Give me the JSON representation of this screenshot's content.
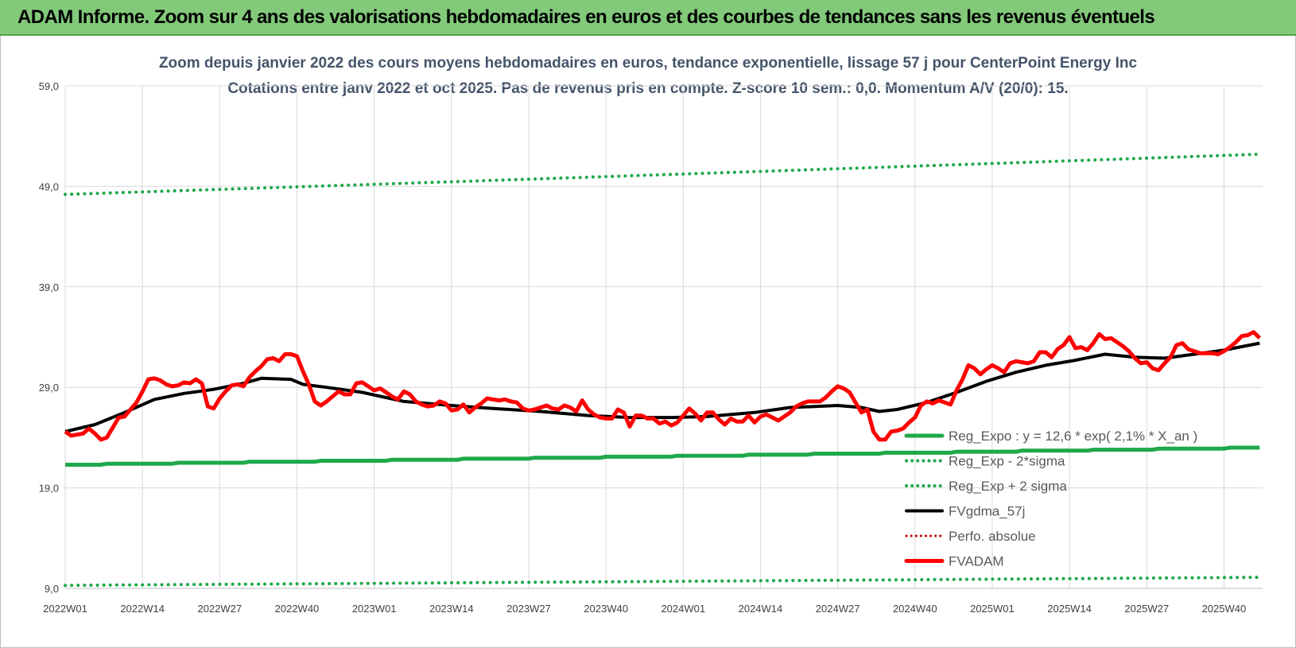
{
  "banner": {
    "title": "ADAM Informe. Zoom sur 4 ans des valorisations hebdomadaires en euros et des courbes de tendances sans les revenus éventuels"
  },
  "colors": {
    "banner": "#82c97a",
    "reg_expo": "#1fa84a",
    "fvgdma": "#000000",
    "fvadam": "#ff0000",
    "perfo": "#c00000",
    "grid": "#d9d9d9"
  },
  "chart_data": {
    "type": "line",
    "title_line1": "Zoom depuis janvier 2022 des cours moyens hebdomadaires en euros, tendance exponentielle, lissage 57 j pour CenterPoint Energy Inc",
    "title_line2": "Cotations entre janv 2022 et oct 2025. Pas de revenus pris en compte. Z-score 10 sem.: 0,0. Momentum A/V (20/0): 15.",
    "ylim": [
      9,
      59
    ],
    "y_ticks": [
      "9,0",
      "19,0",
      "29,0",
      "39,0",
      "49,0",
      "59,0"
    ],
    "y_tick_values": [
      9,
      19,
      29,
      39,
      49,
      59
    ],
    "x_ticks": [
      "2022W01",
      "2022W14",
      "2022W27",
      "2022W40",
      "2023W01",
      "2023W14",
      "2023W27",
      "2023W40",
      "2024W01",
      "2024W14",
      "2024W27",
      "2024W40",
      "2025W01",
      "2025W14",
      "2025W27",
      "2025W40"
    ],
    "x_tick_index": [
      0,
      13,
      26,
      39,
      52,
      65,
      78,
      91,
      104,
      117,
      130,
      143,
      156,
      169,
      182,
      195
    ],
    "n_weeks": 202,
    "grid": true,
    "legend_position": "bottom-right",
    "legend": [
      {
        "key": "reg_expo",
        "label": "Reg_Expo : y = 12,6 * exp( 2,1% * X_an )",
        "style": "solid-green-thick"
      },
      {
        "key": "reg_minus",
        "label": "Reg_Exp - 2*sigma",
        "style": "dotted-green"
      },
      {
        "key": "reg_plus",
        "label": "Reg_Exp + 2 sigma",
        "style": "dotted-green"
      },
      {
        "key": "fvgdma",
        "label": "FVgdma_57j",
        "style": "solid-black"
      },
      {
        "key": "perfo",
        "label": "Perfo. absolue",
        "style": "dotted-red"
      },
      {
        "key": "fvadam",
        "label": "FVADAM",
        "style": "solid-red-thick"
      }
    ],
    "series": [
      {
        "name": "Reg_Expo : y = 12,6 * exp( 2,1% * X_an )",
        "type": "line",
        "start": 21.3,
        "end": 23.0
      },
      {
        "name": "Reg_Exp - 2*sigma",
        "type": "dotted",
        "start": 9.3,
        "end": 10.1
      },
      {
        "name": "Reg_Exp + 2 sigma",
        "type": "dotted",
        "start": 48.2,
        "end": 52.2
      },
      {
        "name": "FVgdma_57j",
        "points": [
          [
            0,
            24.6
          ],
          [
            5,
            25.3
          ],
          [
            10,
            26.5
          ],
          [
            15,
            27.8
          ],
          [
            20,
            28.4
          ],
          [
            25,
            28.8
          ],
          [
            30,
            29.4
          ],
          [
            33,
            29.9
          ],
          [
            38,
            29.8
          ],
          [
            40,
            29.3
          ],
          [
            44,
            29.0
          ],
          [
            50,
            28.5
          ],
          [
            57,
            27.6
          ],
          [
            65,
            27.2
          ],
          [
            72,
            26.9
          ],
          [
            80,
            26.6
          ],
          [
            88,
            26.2
          ],
          [
            95,
            26.0
          ],
          [
            102,
            26.0
          ],
          [
            108,
            26.1
          ],
          [
            116,
            26.5
          ],
          [
            122,
            27.0
          ],
          [
            130,
            27.2
          ],
          [
            134,
            27.0
          ],
          [
            137,
            26.6
          ],
          [
            140,
            26.8
          ],
          [
            145,
            27.5
          ],
          [
            150,
            28.5
          ],
          [
            155,
            29.6
          ],
          [
            160,
            30.5
          ],
          [
            165,
            31.2
          ],
          [
            170,
            31.7
          ],
          [
            175,
            32.3
          ],
          [
            180,
            32.0
          ],
          [
            185,
            31.9
          ],
          [
            190,
            32.3
          ],
          [
            195,
            32.7
          ],
          [
            201,
            33.4
          ]
        ]
      },
      {
        "name": "FVADAM",
        "points": [
          [
            0,
            24.6
          ],
          [
            1,
            24.2
          ],
          [
            2,
            24.3
          ],
          [
            3,
            24.4
          ],
          [
            4,
            24.9
          ],
          [
            5,
            24.4
          ],
          [
            6,
            23.8
          ],
          [
            7,
            24.0
          ],
          [
            8,
            25.0
          ],
          [
            9,
            26.0
          ],
          [
            10,
            26.1
          ],
          [
            11,
            26.8
          ],
          [
            12,
            27.5
          ],
          [
            13,
            28.6
          ],
          [
            14,
            29.8
          ],
          [
            15,
            29.9
          ],
          [
            16,
            29.7
          ],
          [
            17,
            29.3
          ],
          [
            18,
            29.1
          ],
          [
            19,
            29.2
          ],
          [
            20,
            29.5
          ],
          [
            21,
            29.4
          ],
          [
            22,
            29.8
          ],
          [
            23,
            29.4
          ],
          [
            24,
            27.1
          ],
          [
            25,
            26.9
          ],
          [
            26,
            27.9
          ],
          [
            27,
            28.6
          ],
          [
            28,
            29.2
          ],
          [
            29,
            29.3
          ],
          [
            30,
            29.1
          ],
          [
            31,
            30.0
          ],
          [
            32,
            30.6
          ],
          [
            33,
            31.1
          ],
          [
            34,
            31.8
          ],
          [
            35,
            31.9
          ],
          [
            36,
            31.6
          ],
          [
            37,
            32.3
          ],
          [
            38,
            32.3
          ],
          [
            39,
            32.1
          ],
          [
            40,
            30.6
          ],
          [
            41,
            29.3
          ],
          [
            42,
            27.6
          ],
          [
            43,
            27.2
          ],
          [
            44,
            27.6
          ],
          [
            45,
            28.1
          ],
          [
            46,
            28.6
          ],
          [
            47,
            28.3
          ],
          [
            48,
            28.3
          ],
          [
            49,
            29.4
          ],
          [
            50,
            29.5
          ],
          [
            51,
            29.1
          ],
          [
            52,
            28.7
          ],
          [
            53,
            28.9
          ],
          [
            54,
            28.5
          ],
          [
            55,
            28.1
          ],
          [
            56,
            27.8
          ],
          [
            57,
            28.6
          ],
          [
            58,
            28.3
          ],
          [
            59,
            27.6
          ],
          [
            60,
            27.3
          ],
          [
            61,
            27.1
          ],
          [
            62,
            27.2
          ],
          [
            63,
            27.6
          ],
          [
            64,
            27.4
          ],
          [
            65,
            26.7
          ],
          [
            66,
            26.8
          ],
          [
            67,
            27.3
          ],
          [
            68,
            26.5
          ],
          [
            69,
            27.0
          ],
          [
            70,
            27.4
          ],
          [
            71,
            27.9
          ],
          [
            72,
            27.8
          ],
          [
            73,
            27.7
          ],
          [
            74,
            27.8
          ],
          [
            75,
            27.6
          ],
          [
            76,
            27.5
          ],
          [
            77,
            26.9
          ],
          [
            78,
            26.7
          ],
          [
            79,
            26.8
          ],
          [
            80,
            27.0
          ],
          [
            81,
            27.2
          ],
          [
            82,
            26.9
          ],
          [
            83,
            26.8
          ],
          [
            84,
            27.2
          ],
          [
            85,
            27.0
          ],
          [
            86,
            26.6
          ],
          [
            87,
            27.7
          ],
          [
            88,
            26.8
          ],
          [
            89,
            26.3
          ],
          [
            90,
            26.0
          ],
          [
            91,
            25.9
          ],
          [
            92,
            25.9
          ],
          [
            93,
            26.8
          ],
          [
            94,
            26.5
          ],
          [
            95,
            25.1
          ],
          [
            96,
            26.2
          ],
          [
            97,
            26.2
          ],
          [
            98,
            25.9
          ],
          [
            99,
            25.9
          ],
          [
            100,
            25.4
          ],
          [
            101,
            25.6
          ],
          [
            102,
            25.2
          ],
          [
            103,
            25.5
          ],
          [
            104,
            26.2
          ],
          [
            105,
            26.9
          ],
          [
            106,
            26.4
          ],
          [
            107,
            25.7
          ],
          [
            108,
            26.5
          ],
          [
            109,
            26.5
          ],
          [
            110,
            25.8
          ],
          [
            111,
            25.3
          ],
          [
            112,
            25.9
          ],
          [
            113,
            25.6
          ],
          [
            114,
            25.6
          ],
          [
            115,
            26.2
          ],
          [
            116,
            25.5
          ],
          [
            117,
            26.1
          ],
          [
            118,
            26.3
          ],
          [
            119,
            26.0
          ],
          [
            120,
            25.7
          ],
          [
            121,
            26.1
          ],
          [
            122,
            26.5
          ],
          [
            123,
            27.1
          ],
          [
            124,
            27.4
          ],
          [
            125,
            27.6
          ],
          [
            126,
            27.6
          ],
          [
            127,
            27.6
          ],
          [
            128,
            28.0
          ],
          [
            129,
            28.6
          ],
          [
            130,
            29.1
          ],
          [
            131,
            28.9
          ],
          [
            132,
            28.5
          ],
          [
            133,
            27.5
          ],
          [
            134,
            26.5
          ],
          [
            135,
            26.8
          ],
          [
            136,
            24.6
          ],
          [
            137,
            23.8
          ],
          [
            138,
            23.8
          ],
          [
            139,
            24.6
          ],
          [
            140,
            24.7
          ],
          [
            141,
            24.9
          ],
          [
            142,
            25.5
          ],
          [
            143,
            26.0
          ],
          [
            144,
            27.2
          ],
          [
            145,
            27.6
          ],
          [
            146,
            27.4
          ],
          [
            147,
            27.7
          ],
          [
            148,
            27.5
          ],
          [
            149,
            27.3
          ],
          [
            150,
            28.7
          ],
          [
            151,
            29.8
          ],
          [
            152,
            31.2
          ],
          [
            153,
            30.9
          ],
          [
            154,
            30.3
          ],
          [
            155,
            30.8
          ],
          [
            156,
            31.2
          ],
          [
            157,
            30.9
          ],
          [
            158,
            30.5
          ],
          [
            159,
            31.4
          ],
          [
            160,
            31.6
          ],
          [
            161,
            31.5
          ],
          [
            162,
            31.4
          ],
          [
            163,
            31.6
          ],
          [
            164,
            32.5
          ],
          [
            165,
            32.5
          ],
          [
            166,
            32.0
          ],
          [
            167,
            32.8
          ],
          [
            168,
            33.2
          ],
          [
            169,
            34.0
          ],
          [
            170,
            32.9
          ],
          [
            171,
            33.0
          ],
          [
            172,
            32.7
          ],
          [
            173,
            33.4
          ],
          [
            174,
            34.3
          ],
          [
            175,
            33.8
          ],
          [
            176,
            33.9
          ],
          [
            177,
            33.5
          ],
          [
            178,
            33.1
          ],
          [
            179,
            32.6
          ],
          [
            180,
            31.9
          ],
          [
            181,
            31.4
          ],
          [
            182,
            31.5
          ],
          [
            183,
            30.9
          ],
          [
            184,
            30.7
          ],
          [
            185,
            31.4
          ],
          [
            186,
            32.0
          ],
          [
            187,
            33.2
          ],
          [
            188,
            33.4
          ],
          [
            189,
            32.8
          ],
          [
            190,
            32.6
          ],
          [
            191,
            32.4
          ],
          [
            192,
            32.4
          ],
          [
            193,
            32.4
          ],
          [
            194,
            32.3
          ],
          [
            195,
            32.6
          ],
          [
            196,
            33.0
          ],
          [
            197,
            33.5
          ],
          [
            198,
            34.1
          ],
          [
            199,
            34.2
          ],
          [
            200,
            34.5
          ],
          [
            201,
            33.9
          ]
        ]
      }
    ]
  }
}
